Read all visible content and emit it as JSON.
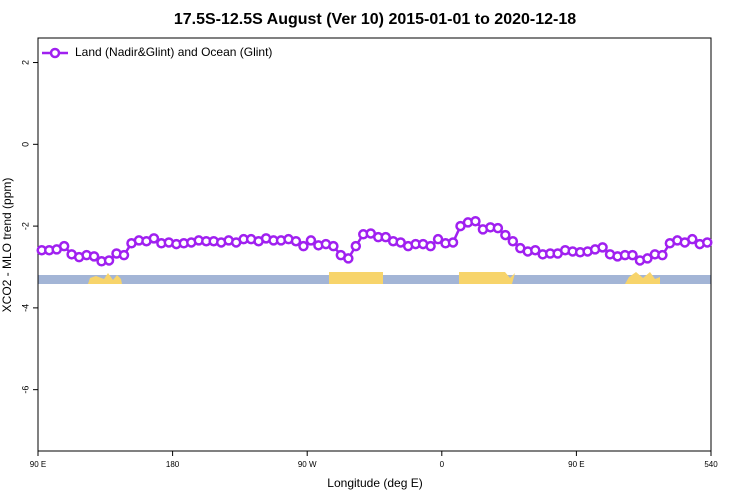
{
  "chart_data": {
    "type": "line",
    "title": "17.5S-12.5S August (Ver 10)   2015-01-01 to 2020-12-18",
    "x_label": "Longitude (deg E)",
    "y_label": "XCO2 - MLO trend (ppm)",
    "x": [
      92.5,
      97.5,
      102.5,
      107.5,
      112.5,
      117.5,
      122.5,
      127.5,
      132.5,
      137.5,
      142.5,
      147.5,
      152.5,
      157.5,
      162.5,
      167.5,
      172.5,
      177.5,
      182.5,
      187.5,
      192.5,
      197.5,
      202.5,
      207.5,
      212.5,
      217.5,
      222.5,
      227.5,
      232.5,
      237.5,
      242.5,
      247.5,
      252.5,
      257.5,
      262.5,
      267.5,
      272.5,
      277.5,
      282.5,
      287.5,
      292.5,
      297.5,
      302.5,
      307.5,
      312.5,
      317.5,
      322.5,
      327.5,
      332.5,
      337.5,
      342.5,
      347.5,
      352.5,
      357.5,
      362.5,
      367.5,
      372.5,
      377.5,
      382.5,
      387.5,
      392.5,
      397.5,
      402.5,
      407.5,
      412.5,
      417.5,
      422.5,
      427.5,
      432.5,
      437.5,
      442.5,
      447.5,
      452.5,
      457.5,
      462.5,
      467.5,
      472.5,
      477.5,
      482.5,
      487.5,
      492.5,
      497.5,
      502.5,
      507.5,
      512.5,
      517.5,
      522.5,
      527.5,
      532.5,
      537.5
    ],
    "series": [
      {
        "name": "Land (Nadir&Glint) and Ocean (Glint)",
        "color": "#a020f0",
        "values": [
          -2.59,
          -2.59,
          -2.57,
          -2.49,
          -2.69,
          -2.76,
          -2.71,
          -2.74,
          -2.86,
          -2.84,
          -2.67,
          -2.71,
          -2.42,
          -2.35,
          -2.37,
          -2.3,
          -2.42,
          -2.4,
          -2.44,
          -2.42,
          -2.4,
          -2.35,
          -2.37,
          -2.37,
          -2.4,
          -2.35,
          -2.4,
          -2.32,
          -2.32,
          -2.37,
          -2.3,
          -2.35,
          -2.35,
          -2.32,
          -2.37,
          -2.49,
          -2.35,
          -2.47,
          -2.44,
          -2.49,
          -2.71,
          -2.79,
          -2.49,
          -2.2,
          -2.18,
          -2.27,
          -2.27,
          -2.37,
          -2.4,
          -2.49,
          -2.44,
          -2.44,
          -2.49,
          -2.32,
          -2.42,
          -2.4,
          -2.0,
          -1.91,
          -1.88,
          -2.08,
          -2.03,
          -2.05,
          -2.22,
          -2.37,
          -2.54,
          -2.62,
          -2.59,
          -2.69,
          -2.67,
          -2.67,
          -2.59,
          -2.62,
          -2.64,
          -2.62,
          -2.57,
          -2.52,
          -2.69,
          -2.74,
          -2.71,
          -2.71,
          -2.84,
          -2.79,
          -2.69,
          -2.71,
          -2.42,
          -2.35,
          -2.4,
          -2.32,
          -2.44,
          -2.4
        ]
      }
    ],
    "xlim": [
      90,
      540
    ],
    "xticks": [
      {
        "value": 90,
        "label": "90 E"
      },
      180,
      {
        "value": 270,
        "label": "90 W"
      },
      {
        "value": 360,
        "label": "0"
      },
      {
        "value": 450,
        "label": "90 E"
      },
      540
    ],
    "ylim": [
      -7.5,
      2.6
    ],
    "yticks": [
      -6,
      -4,
      -2,
      0,
      2
    ],
    "legend": "top-left",
    "grid": false
  }
}
